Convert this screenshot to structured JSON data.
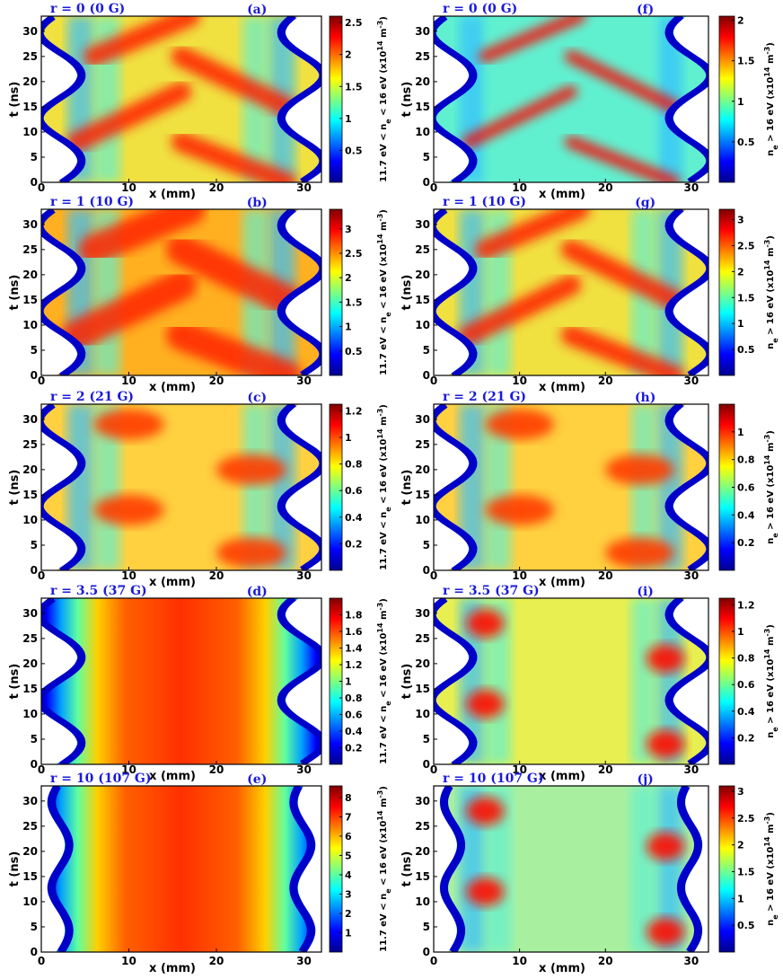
{
  "figure": {
    "x_axis_label": "x (mm)",
    "y_axis_label": "t (ns)",
    "x_ticks": [
      "0",
      "10",
      "20",
      "30"
    ],
    "y_ticks": [
      "0",
      "5",
      "10",
      "15",
      "20",
      "25",
      "30"
    ],
    "left_colorbar_label": "11.7 eV < n_e < 16 eV (x10^14 m^-3)",
    "right_colorbar_label": "n_e > 16 eV (x10^14 m^-3)"
  },
  "colors": {
    "title": "#1a1adb",
    "colormap": [
      "#00008f",
      "#0000ff",
      "#007fff",
      "#00ffff",
      "#7fff7f",
      "#ffff00",
      "#ff7f00",
      "#ff0000",
      "#7f0000"
    ]
  },
  "chart_data": [
    {
      "type": "heatmap",
      "panel": "(a)",
      "title": "r = 0 (0 G)",
      "column": "left",
      "xlim": [
        0,
        32
      ],
      "ylim": [
        0,
        33
      ],
      "colorbar_ticks": [
        "0.5",
        "1",
        "1.5",
        "2",
        "2.5"
      ],
      "colorbar_range": [
        0,
        2.6
      ],
      "pattern": "diagonal_bands",
      "wall": "wavy"
    },
    {
      "type": "heatmap",
      "panel": "(b)",
      "title": "r = 1 (10 G)",
      "column": "left",
      "xlim": [
        0,
        32
      ],
      "ylim": [
        0,
        33
      ],
      "colorbar_ticks": [
        "0.5",
        "1",
        "1.5",
        "2",
        "2.5",
        "3"
      ],
      "colorbar_range": [
        0,
        3.4
      ],
      "pattern": "broad_diagonal",
      "wall": "wavy"
    },
    {
      "type": "heatmap",
      "panel": "(c)",
      "title": "r = 2 (21 G)",
      "column": "left",
      "xlim": [
        0,
        32
      ],
      "ylim": [
        0,
        33
      ],
      "colorbar_ticks": [
        "0.2",
        "0.4",
        "0.6",
        "0.8",
        "1",
        "1.2"
      ],
      "colorbar_range": [
        0,
        1.25
      ],
      "pattern": "blobs",
      "wall": "wavy"
    },
    {
      "type": "heatmap",
      "panel": "(d)",
      "title": "r = 3.5 (37 G)",
      "column": "left",
      "xlim": [
        0,
        32
      ],
      "ylim": [
        0,
        33
      ],
      "colorbar_ticks": [
        "0.2",
        "0.4",
        "0.6",
        "0.8",
        "1",
        "1.2",
        "1.4",
        "1.6",
        "1.8"
      ],
      "colorbar_range": [
        0,
        2.0
      ],
      "pattern": "uniform_center",
      "wall": "wavy"
    },
    {
      "type": "heatmap",
      "panel": "(e)",
      "title": "r = 10 (107 G)",
      "column": "left",
      "xlim": [
        0,
        32
      ],
      "ylim": [
        0,
        33
      ],
      "colorbar_ticks": [
        "1",
        "2",
        "3",
        "4",
        "5",
        "6",
        "7",
        "8"
      ],
      "colorbar_range": [
        0,
        8.6
      ],
      "pattern": "uniform_center",
      "wall": "thin"
    },
    {
      "type": "heatmap",
      "panel": "(f)",
      "title": "r = 0 (0 G)",
      "column": "right",
      "xlim": [
        0,
        32
      ],
      "ylim": [
        0,
        33
      ],
      "colorbar_ticks": [
        "0.5",
        "1",
        "1.5",
        "2"
      ],
      "colorbar_range": [
        0,
        2.05
      ],
      "pattern": "thin_diagonal",
      "wall": "wavy"
    },
    {
      "type": "heatmap",
      "panel": "(g)",
      "title": "r = 1 (10 G)",
      "column": "right",
      "xlim": [
        0,
        32
      ],
      "ylim": [
        0,
        33
      ],
      "colorbar_ticks": [
        "0.5",
        "1",
        "1.5",
        "2",
        "2.5",
        "3"
      ],
      "colorbar_range": [
        0,
        3.2
      ],
      "pattern": "diagonal_bands",
      "wall": "wavy"
    },
    {
      "type": "heatmap",
      "panel": "(h)",
      "title": "r = 2 (21 G)",
      "column": "right",
      "xlim": [
        0,
        32
      ],
      "ylim": [
        0,
        33
      ],
      "colorbar_ticks": [
        "0.2",
        "0.4",
        "0.6",
        "0.8",
        "1"
      ],
      "colorbar_range": [
        0,
        1.2
      ],
      "pattern": "blobs",
      "wall": "wavy"
    },
    {
      "type": "heatmap",
      "panel": "(i)",
      "title": "r = 3.5 (37 G)",
      "column": "right",
      "xlim": [
        0,
        32
      ],
      "ylim": [
        0,
        33
      ],
      "colorbar_ticks": [
        "0.2",
        "0.4",
        "0.6",
        "0.8",
        "1",
        "1.2"
      ],
      "colorbar_range": [
        0,
        1.25
      ],
      "pattern": "edge_blobs",
      "wall": "wavy"
    },
    {
      "type": "heatmap",
      "panel": "(j)",
      "title": "r = 10 (107 G)",
      "column": "right",
      "xlim": [
        0,
        32
      ],
      "ylim": [
        0,
        33
      ],
      "colorbar_ticks": [
        "0.5",
        "1",
        "1.5",
        "2",
        "2.5",
        "3"
      ],
      "colorbar_range": [
        0,
        3.1
      ],
      "pattern": "corner_blobs",
      "wall": "thin"
    }
  ]
}
